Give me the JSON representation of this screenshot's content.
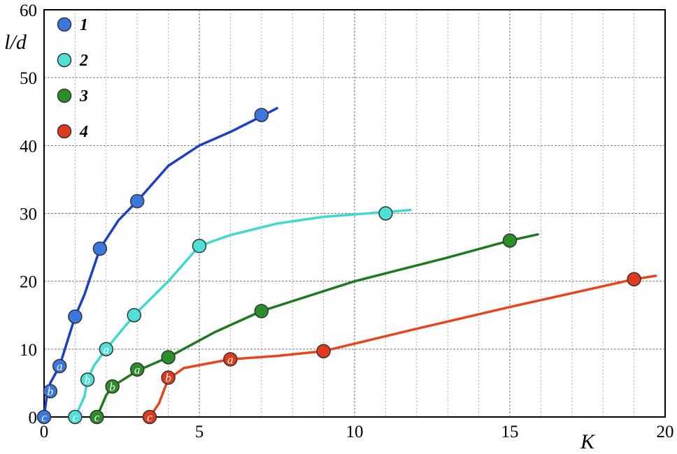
{
  "chart_data": {
    "type": "line",
    "xlabel": "K",
    "ylabel": "l/d",
    "xlim": [
      0,
      20
    ],
    "ylim": [
      0,
      60
    ],
    "xticks": [
      0,
      5,
      10,
      15,
      20
    ],
    "yticks": [
      0,
      10,
      20,
      30,
      40,
      50,
      60
    ],
    "x_minor_step": 1,
    "grid": true,
    "legend_position": "top-left",
    "series": [
      {
        "name": "1",
        "color": "#1a3fc8",
        "marker_color": "#3a78e0",
        "curve": [
          [
            0,
            0
          ],
          [
            0.1,
            3.5
          ],
          [
            0.2,
            5
          ],
          [
            0.5,
            7.5
          ],
          [
            1,
            14.8
          ],
          [
            1.3,
            18
          ],
          [
            1.8,
            24.8
          ],
          [
            2.4,
            29
          ],
          [
            3,
            31.8
          ],
          [
            4,
            37
          ],
          [
            5,
            40
          ],
          [
            6,
            42
          ],
          [
            7,
            44.3
          ],
          [
            7.5,
            45.5
          ]
        ],
        "points": [
          {
            "x": 0,
            "y": 0,
            "label": "c"
          },
          {
            "x": 0.2,
            "y": 3.8,
            "label": "b"
          },
          {
            "x": 0.5,
            "y": 7.5,
            "label": "a"
          },
          {
            "x": 1,
            "y": 14.8,
            "label": ""
          },
          {
            "x": 1.8,
            "y": 24.8,
            "label": ""
          },
          {
            "x": 3,
            "y": 31.8,
            "label": ""
          },
          {
            "x": 7,
            "y": 44.5,
            "label": ""
          }
        ]
      },
      {
        "name": "2",
        "color": "#3fd9d0",
        "marker_color": "#4fe0d8",
        "curve": [
          [
            1,
            0
          ],
          [
            1.3,
            3
          ],
          [
            1.4,
            5.5
          ],
          [
            1.6,
            7.5
          ],
          [
            2,
            10
          ],
          [
            2.9,
            15
          ],
          [
            4,
            20
          ],
          [
            5,
            25.2
          ],
          [
            6,
            26.8
          ],
          [
            7.5,
            28.5
          ],
          [
            9,
            29.5
          ],
          [
            11,
            30.2
          ],
          [
            11.8,
            30.5
          ]
        ],
        "points": [
          {
            "x": 1,
            "y": 0,
            "label": "c"
          },
          {
            "x": 1.4,
            "y": 5.5,
            "label": "b"
          },
          {
            "x": 2,
            "y": 10,
            "label": "a"
          },
          {
            "x": 2.9,
            "y": 15,
            "label": ""
          },
          {
            "x": 5,
            "y": 25.2,
            "label": ""
          },
          {
            "x": 11,
            "y": 30,
            "label": ""
          }
        ]
      },
      {
        "name": "3",
        "color": "#1e7a1e",
        "marker_color": "#2a8e2a",
        "curve": [
          [
            1.7,
            0
          ],
          [
            2,
            3.2
          ],
          [
            2.2,
            4.5
          ],
          [
            3,
            6.8
          ],
          [
            4,
            8.8
          ],
          [
            5.5,
            12.5
          ],
          [
            7,
            15.6
          ],
          [
            10,
            20
          ],
          [
            13,
            23.5
          ],
          [
            15,
            26
          ],
          [
            15.9,
            26.9
          ]
        ],
        "points": [
          {
            "x": 1.7,
            "y": 0,
            "label": "c"
          },
          {
            "x": 2.2,
            "y": 4.5,
            "label": "b"
          },
          {
            "x": 3,
            "y": 7,
            "label": "a"
          },
          {
            "x": 4,
            "y": 8.8,
            "label": ""
          },
          {
            "x": 7,
            "y": 15.6,
            "label": ""
          },
          {
            "x": 15,
            "y": 26,
            "label": ""
          }
        ]
      },
      {
        "name": "4",
        "color": "#e8451e",
        "marker_color": "#e03a1c",
        "curve": [
          [
            3.4,
            0
          ],
          [
            3.7,
            2
          ],
          [
            4,
            5.6
          ],
          [
            4.5,
            7.2
          ],
          [
            6,
            8.5
          ],
          [
            7.5,
            9
          ],
          [
            9,
            9.7
          ],
          [
            12,
            13
          ],
          [
            15,
            16.2
          ],
          [
            19,
            20.3
          ],
          [
            19.7,
            20.8
          ]
        ],
        "points": [
          {
            "x": 3.4,
            "y": 0,
            "label": "c"
          },
          {
            "x": 4,
            "y": 5.8,
            "label": "b"
          },
          {
            "x": 6,
            "y": 8.5,
            "label": "a"
          },
          {
            "x": 9,
            "y": 9.7,
            "label": ""
          },
          {
            "x": 19,
            "y": 20.3,
            "label": ""
          }
        ]
      }
    ]
  }
}
